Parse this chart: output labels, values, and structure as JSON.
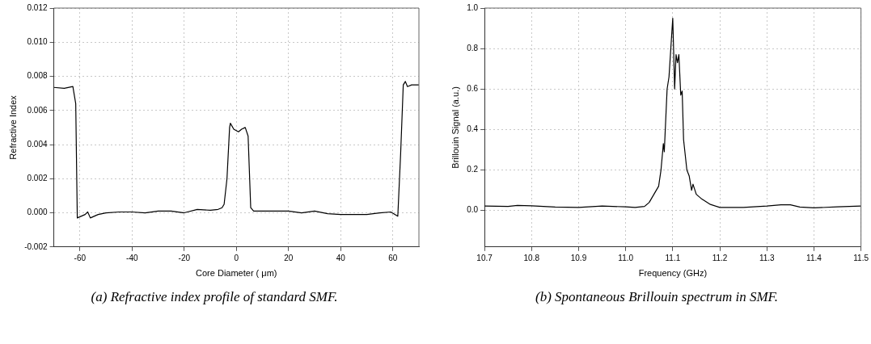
{
  "chart_data": [
    {
      "type": "line",
      "xlabel": "Core Diameter ( μm)",
      "ylabel": "Refractive Index",
      "annotations": [
        "(a) Refractive index profile of standard SMF."
      ],
      "grid": true,
      "marker": "none",
      "line_style": "solid",
      "legend": false,
      "xlim": [
        -70,
        70
      ],
      "xticks": [
        -60,
        -40,
        -20,
        0,
        20,
        40,
        60
      ],
      "ylim": [
        -0.002,
        0.012
      ],
      "yticks": [
        {
          "value": -0.002,
          "label": "-0.002"
        },
        {
          "value": 0,
          "label": "0.000"
        },
        {
          "value": 0.002,
          "label": "0.002"
        },
        {
          "value": 0.004,
          "label": "0.004"
        },
        {
          "value": 0.006,
          "label": "0.006"
        },
        {
          "value": 0.008,
          "label": "0.008"
        },
        {
          "value": 0.01,
          "label": "0.010"
        },
        {
          "value": 0.012,
          "label": "0.012"
        }
      ],
      "series": [
        {
          "color": "#000000",
          "x": [
            -70,
            -66,
            -62.7,
            -61.6,
            -61,
            -58,
            -57,
            -56,
            -53,
            -50,
            -45,
            -40,
            -35,
            -30,
            -25,
            -20,
            -15,
            -10,
            -7,
            -5.5,
            -4.7,
            -3.6,
            -2.6,
            -2.3,
            -1,
            0.8,
            2,
            3.4,
            4.5,
            5.5,
            6.6,
            10,
            15,
            20,
            25,
            30,
            35,
            40,
            45,
            50,
            55,
            59.2,
            61.9,
            63,
            64,
            64.8,
            65.6,
            67.2,
            70
          ],
          "values": [
            0.00735,
            0.0073,
            0.0074,
            0.0064,
            -0.0003,
            -0.0001,
            5e-05,
            -0.0003,
            -0.0001,
            0.0,
            5e-05,
            5e-05,
            0.0,
            0.0001,
            0.0001,
            0.0,
            0.0002,
            0.00015,
            0.0002,
            0.0003,
            0.0005,
            0.002,
            0.005,
            0.00525,
            0.0049,
            0.00475,
            0.0049,
            0.005,
            0.0045,
            0.0003,
            0.0001,
            0.0001,
            0.0001,
            0.0001,
            0.0,
            0.0001,
            -5e-05,
            -0.0001,
            -0.0001,
            -0.0001,
            0.0,
            5e-05,
            -0.0002,
            0.0035,
            0.0075,
            0.0077,
            0.0074,
            0.0075,
            0.0075
          ]
        }
      ]
    },
    {
      "type": "line",
      "xlabel": "Frequency (GHz)",
      "ylabel": "Brillouin Signal (a.u.)",
      "annotations": [
        "(b) Spontaneous Brillouin spectrum in SMF."
      ],
      "grid": true,
      "marker": "none",
      "line_style": "solid",
      "legend": false,
      "xlim": [
        10.7,
        11.5
      ],
      "xticks": [
        10.7,
        10.8,
        10.9,
        {
          "value": 11.0,
          "label": "11.0"
        },
        11.1,
        11.2,
        11.3,
        11.4,
        11.5
      ],
      "ylim": [
        -0.18,
        1.0
      ],
      "yticks": [
        {
          "value": 0,
          "label": "0.0"
        },
        0.2,
        0.4,
        0.6,
        0.8,
        {
          "value": 1.0,
          "label": "1.0"
        }
      ],
      "series": [
        {
          "color": "#000000",
          "x": [
            10.7,
            10.75,
            10.77,
            10.8,
            10.85,
            10.9,
            10.95,
            11.0,
            11.02,
            11.04,
            11.05,
            11.06,
            11.07,
            11.075,
            11.08,
            11.082,
            11.088,
            11.092,
            11.1,
            11.104,
            11.107,
            11.11,
            11.113,
            11.117,
            11.12,
            11.123,
            11.13,
            11.135,
            11.14,
            11.143,
            11.15,
            11.16,
            11.18,
            11.2,
            11.25,
            11.3,
            11.33,
            11.35,
            11.37,
            11.4,
            11.45,
            11.5
          ],
          "values": [
            0.022,
            0.02,
            0.025,
            0.023,
            0.017,
            0.015,
            0.022,
            0.018,
            0.015,
            0.02,
            0.04,
            0.08,
            0.12,
            0.2,
            0.33,
            0.29,
            0.6,
            0.66,
            0.95,
            0.6,
            0.77,
            0.73,
            0.77,
            0.57,
            0.59,
            0.35,
            0.2,
            0.17,
            0.1,
            0.13,
            0.08,
            0.06,
            0.03,
            0.015,
            0.015,
            0.022,
            0.028,
            0.028,
            0.017,
            0.013,
            0.018,
            0.022
          ]
        }
      ]
    }
  ]
}
